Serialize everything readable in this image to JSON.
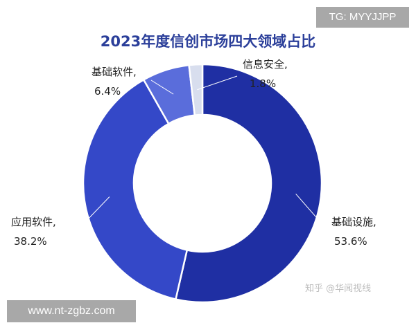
{
  "chart_data": {
    "type": "donut",
    "title": "2023年度信创市场四大领域占比",
    "slices": [
      {
        "label": "基础设施,",
        "value": 53.6,
        "value_text": "53.6%",
        "color": "#1f2fa3"
      },
      {
        "label": "应用软件,",
        "value": 38.2,
        "value_text": "38.2%",
        "color": "#3448c8"
      },
      {
        "label": "基础软件,",
        "value": 6.4,
        "value_text": "6.4%",
        "color": "#5a6ddb"
      },
      {
        "label": "信息安全,",
        "value": 1.8,
        "value_text": "1.8%",
        "color": "#d8deee"
      }
    ],
    "start": "top, clockwise",
    "legend": "none (leader-line labels)"
  },
  "overlays": {
    "tg_badge": "TG: MYYJJPP",
    "url_badge": "www.nt-zgbz.com",
    "watermark": "知乎 @华闻视线"
  }
}
